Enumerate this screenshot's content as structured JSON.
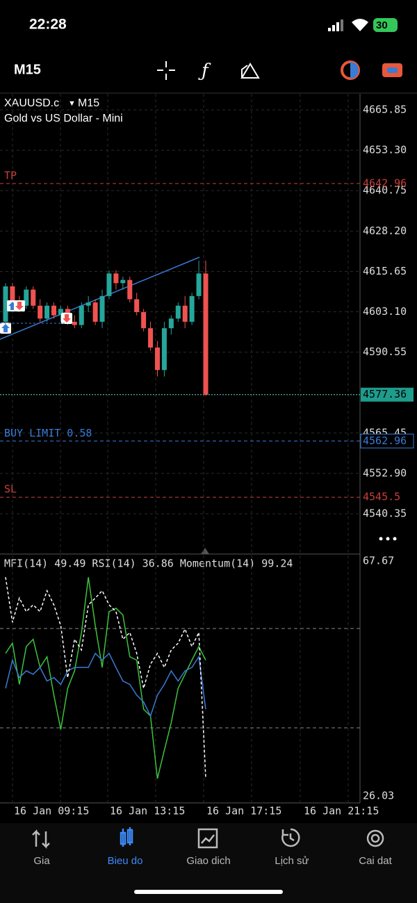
{
  "status_bar": {
    "time": "22:28",
    "battery": "30"
  },
  "toolbar": {
    "timeframe": "M15"
  },
  "chart": {
    "symbol": "XAUUSD.c",
    "period": "M15",
    "description": "Gold vs US Dollar - Mini",
    "ylim": [
      4527.84,
      4670.82
    ],
    "price_ticks": [
      4665.85,
      {
        "value": 4653.3,
        "label": "4653.30"
      },
      4640.75,
      {
        "value": 4628.2,
        "label": "4628.20"
      },
      4615.65,
      {
        "value": 4603.1,
        "label": "4603.10"
      },
      4590.55,
      4565.45,
      {
        "value": 4552.9,
        "label": "4552.90"
      },
      4540.35
    ],
    "current_price": 4577.36,
    "price_lines": [
      {
        "name": "TP",
        "value": 4642.96,
        "color": "#c8403a"
      },
      {
        "name": "BUY LIMIT 0.58",
        "value": 4562.96,
        "color": "#3a7bd5"
      },
      {
        "name": "SL",
        "value": 4545.5,
        "color": "#c8403a"
      }
    ],
    "candles": {
      "open": [
        4600,
        4611,
        4606,
        4605,
        4610,
        4605,
        4601,
        4605,
        4602,
        4604,
        4600,
        4599,
        4605,
        4606,
        4600,
        4608,
        4615,
        4612,
        4613,
        4607,
        4603,
        4598,
        4592,
        4585,
        4598,
        4601,
        4605,
        4600,
        4608,
        4615
      ],
      "high": [
        4612,
        4612,
        4608,
        4611,
        4611,
        4607,
        4606,
        4606,
        4605,
        4605,
        4602,
        4606,
        4608,
        4607,
        4610,
        4616,
        4616,
        4614,
        4614,
        4609,
        4604,
        4600,
        4594,
        4600,
        4602,
        4606,
        4608,
        4609,
        4619,
        4619
      ],
      "low": [
        4598,
        4604,
        4603,
        4604,
        4604,
        4600,
        4600,
        4601,
        4600,
        4599,
        4598,
        4598,
        4603,
        4599,
        4598,
        4607,
        4610,
        4610,
        4606,
        4602,
        4597,
        4591,
        4583,
        4583,
        4596,
        4600,
        4598,
        4599,
        4607,
        4577
      ],
      "close": [
        4611,
        4606,
        4605,
        4610,
        4605,
        4601,
        4605,
        4602,
        4604,
        4600,
        4599,
        4605,
        4606,
        4600,
        4608,
        4615,
        4612,
        4613,
        4607,
        4603,
        4598,
        4592,
        4585,
        4598,
        4601,
        4605,
        4600,
        4608,
        4615,
        4577.36
      ]
    },
    "time_labels": [
      "16 Jan 09:15",
      "16 Jan 13:15",
      "16 Jan 17:15",
      "16 Jan 21:15"
    ]
  },
  "indicator": {
    "legend": "MFI(14) 49.49 RSI(14) 36.86 Momentum(14) 99.24",
    "ylim": [
      26.03,
      67.67
    ],
    "yticks": [
      67.67,
      26.03
    ],
    "levels": [
      55.7,
      38.1
    ],
    "series": [
      {
        "color": "#3cc43c",
        "values": [
          51.3,
          53.1,
          45.8,
          52.5,
          53.8,
          48.8,
          50.7,
          43.9,
          37.8,
          45.1,
          48.2,
          55.0,
          64.8,
          56.2,
          48.8,
          58.7,
          59.3,
          58.1,
          50.7,
          50.1,
          41.4,
          40.2,
          29.1,
          34.1,
          39.0,
          45.1,
          47.6,
          50.1,
          52.5,
          50.1
        ]
      },
      {
        "color": "#3a7bd5",
        "values": [
          45.1,
          50.1,
          47.0,
          48.2,
          47.6,
          48.8,
          46.4,
          47.0,
          45.8,
          48.2,
          48.8,
          48.8,
          48.8,
          51.3,
          50.1,
          51.3,
          48.8,
          46.4,
          45.8,
          43.9,
          42.7,
          40.2,
          43.9,
          45.8,
          48.2,
          46.4,
          48.2,
          48.8,
          50.7,
          41.4
        ]
      },
      {
        "color": "#ffffff",
        "dashed": true,
        "values": [
          64.8,
          56.8,
          61.1,
          58.7,
          59.9,
          58.7,
          62.4,
          59.9,
          56.2,
          47.0,
          53.8,
          51.9,
          59.9,
          61.1,
          62.4,
          59.9,
          58.7,
          53.8,
          55.0,
          51.3,
          45.1,
          49.4,
          51.3,
          48.8,
          51.9,
          53.1,
          55.6,
          52.5,
          55.0,
          29.1
        ]
      }
    ]
  },
  "tabs": [
    {
      "label": "Gia",
      "active": false
    },
    {
      "label": "Bieu do",
      "active": true
    },
    {
      "label": "Giao dich",
      "active": false
    },
    {
      "label": "Lịch sử",
      "active": false
    },
    {
      "label": "Cai dat",
      "active": false
    }
  ]
}
